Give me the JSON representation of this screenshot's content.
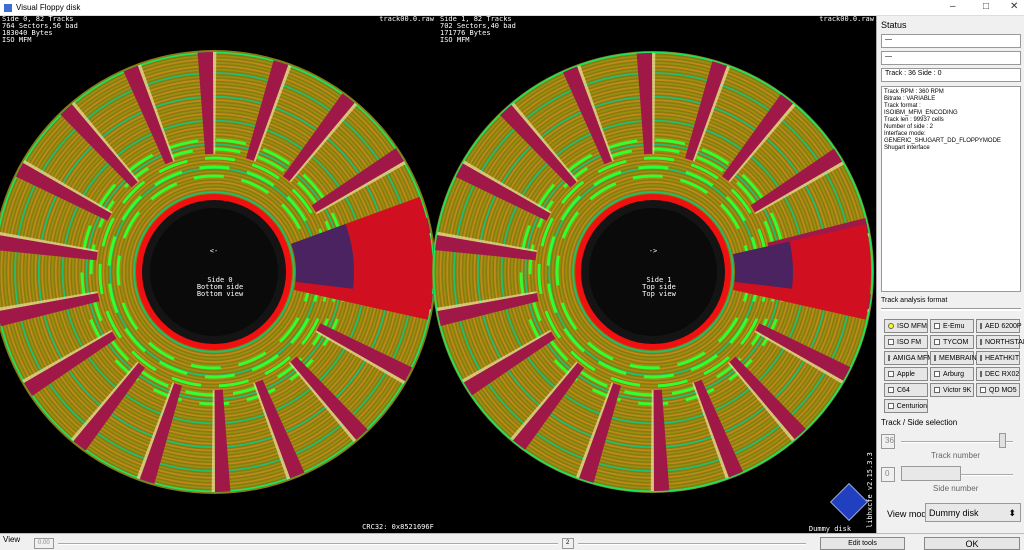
{
  "window": {
    "title": "Visual Floppy disk"
  },
  "disks": [
    {
      "info": [
        "Side 0, 82 Tracks",
        "764 Sectors,56 bad",
        "183040 Bytes",
        "ISO MFM"
      ],
      "file": "track00.0.raw",
      "arrow": "<-",
      "labels": [
        "Side 0",
        "Bottom side",
        "Bottom view"
      ]
    },
    {
      "info": [
        "Side 1, 82 Tracks",
        "702 Sectors,40 bad",
        "171776 Bytes",
        "ISO MFM"
      ],
      "file": "track00.0.raw",
      "arrow": "->",
      "labels": [
        "Side 1",
        "Top side",
        "Top view"
      ]
    }
  ],
  "footer": {
    "crc": "CRC32: 0x8521696F",
    "disk_name": "Dummy disk",
    "version": "libhxcfe v2.15.3.3"
  },
  "status": {
    "title": "Status",
    "fields": [
      "—",
      "—",
      "Track : 36 Side : 0"
    ],
    "details": [
      "Track RPM : 360 RPM",
      "Bitrate : VARIABLE",
      "Track format :",
      "ISOIBM_MFM_ENCODING",
      "Track len : 99937 cells",
      "Number of side : 2",
      "Interface mode:",
      "GENERIC_SHUGART_DD_FLOPPYMODE",
      "Shugart interface"
    ]
  },
  "analysis": {
    "title": "Track analysis format",
    "options": [
      "ISO MFM",
      "E-Emu",
      "AED 6200P",
      "ISO FM",
      "TYCOM",
      "NORTHSTAR",
      "AMIGA MFM",
      "MEMBRAIN",
      "HEATHKIT",
      "Apple",
      "Arburg",
      "DEC RX02",
      "C64",
      "Victor 9K",
      "QD MO5",
      "Centurion"
    ]
  },
  "selection": {
    "title": "Track / Side selection",
    "track": "36",
    "track_label": "Track number",
    "side": "0",
    "side_label": "Side number",
    "view_mode_label": "View mode",
    "view_mode": "Dummy disk"
  },
  "bottom": {
    "view_label": "View",
    "zoom": "0.00",
    "page": "2",
    "edit": "Edit tools",
    "ok": "OK"
  }
}
